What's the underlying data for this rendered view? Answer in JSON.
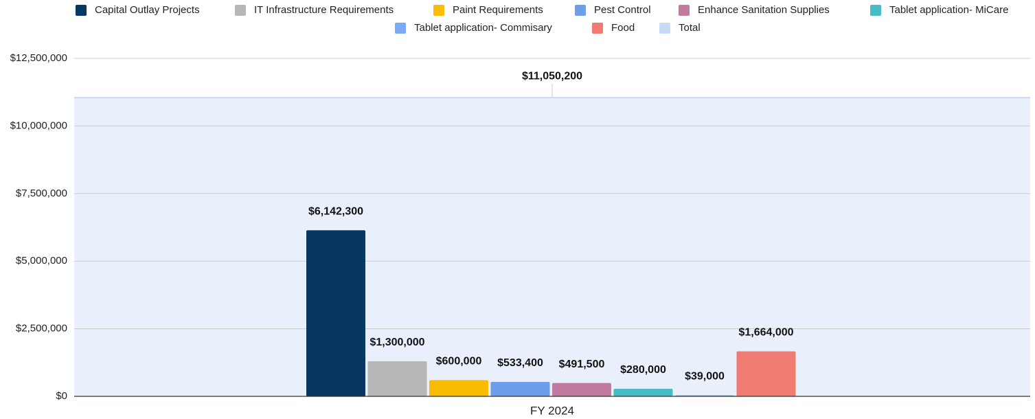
{
  "chart_data": {
    "type": "bar",
    "categories": [
      "FY 2024"
    ],
    "series": [
      {
        "name": "Capital Outlay Projects",
        "color": "#073763",
        "values": [
          6142300
        ],
        "value_labels": [
          "$6,142,300"
        ]
      },
      {
        "name": "IT Infrastructure Requirements",
        "color": "#b7b7b7",
        "values": [
          1300000
        ],
        "value_labels": [
          "$1,300,000"
        ]
      },
      {
        "name": "Paint Requirements",
        "color": "#fbbc04",
        "values": [
          600000
        ],
        "value_labels": [
          "$600,000"
        ]
      },
      {
        "name": "Pest Control",
        "color": "#6d9eeb",
        "values": [
          533400
        ],
        "value_labels": [
          "$533,400"
        ]
      },
      {
        "name": "Enhance Sanitation Supplies",
        "color": "#c27ba0",
        "values": [
          491500
        ],
        "value_labels": [
          "$491,500"
        ]
      },
      {
        "name": "Tablet application- MiCare",
        "color": "#46bdc6",
        "values": [
          280000
        ],
        "value_labels": [
          "$280,000"
        ]
      },
      {
        "name": "Tablet application- Commisary",
        "color": "#7baaf7",
        "values": [
          39000
        ],
        "value_labels": [
          "$39,000"
        ]
      },
      {
        "name": "Food",
        "color": "#f07b72",
        "values": [
          1664000
        ],
        "value_labels": [
          "$1,664,000"
        ]
      },
      {
        "name": "Total",
        "color": "#c9daf8",
        "values": [
          11050200
        ],
        "value_labels": [
          "$11,050,200"
        ]
      }
    ],
    "ylim": [
      0,
      12500000
    ],
    "yticks": [
      {
        "value": 0,
        "label": "$0"
      },
      {
        "value": 2500000,
        "label": "$2,500,000"
      },
      {
        "value": 5000000,
        "label": "$5,000,000"
      },
      {
        "value": 7500000,
        "label": "$7,500,000"
      },
      {
        "value": 10000000,
        "label": "$10,000,000"
      },
      {
        "value": 12500000,
        "label": "$12,500,000"
      }
    ],
    "grid": true,
    "legend": "top"
  }
}
